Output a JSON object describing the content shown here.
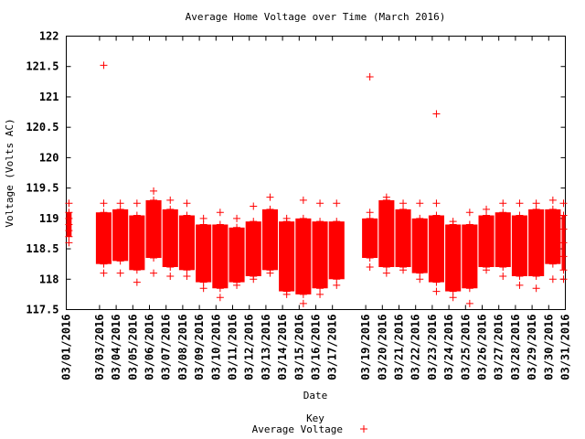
{
  "chart_data": {
    "type": "scatter",
    "title": "Average Home Voltage over Time (March 2016)",
    "xlabel": "Date",
    "ylabel": "Voltage (Volts AC)",
    "ylim": [
      117.5,
      122
    ],
    "yticks": [
      "117.5",
      "118",
      "118.5",
      "119",
      "119.5",
      "120",
      "120.5",
      "121",
      "121.5",
      "122"
    ],
    "xlim": [
      1,
      31
    ],
    "xticks": [
      {
        "day": 1,
        "label": "03/01/2016"
      },
      {
        "day": 3,
        "label": "03/03/2016"
      },
      {
        "day": 4,
        "label": "03/04/2016"
      },
      {
        "day": 5,
        "label": "03/05/2016"
      },
      {
        "day": 6,
        "label": "03/06/2016"
      },
      {
        "day": 7,
        "label": "03/07/2016"
      },
      {
        "day": 8,
        "label": "03/08/2016"
      },
      {
        "day": 9,
        "label": "03/09/2016"
      },
      {
        "day": 10,
        "label": "03/10/2016"
      },
      {
        "day": 11,
        "label": "03/11/2016"
      },
      {
        "day": 12,
        "label": "03/12/2016"
      },
      {
        "day": 13,
        "label": "03/13/2016"
      },
      {
        "day": 14,
        "label": "03/14/2016"
      },
      {
        "day": 15,
        "label": "03/15/2016"
      },
      {
        "day": 16,
        "label": "03/16/2016"
      },
      {
        "day": 17,
        "label": "03/17/2016"
      },
      {
        "day": 19,
        "label": "03/19/2016"
      },
      {
        "day": 20,
        "label": "03/20/2016"
      },
      {
        "day": 21,
        "label": "03/21/2016"
      },
      {
        "day": 22,
        "label": "03/22/2016"
      },
      {
        "day": 23,
        "label": "03/23/2016"
      },
      {
        "day": 24,
        "label": "03/24/2016"
      },
      {
        "day": 25,
        "label": "03/25/2016"
      },
      {
        "day": 26,
        "label": "03/26/2016"
      },
      {
        "day": 27,
        "label": "03/27/2016"
      },
      {
        "day": 28,
        "label": "03/28/2016"
      },
      {
        "day": 29,
        "label": "03/29/2016"
      },
      {
        "day": 30,
        "label": "03/30/2016"
      },
      {
        "day": 31,
        "label": "03/31/2016"
      }
    ],
    "legend": {
      "title": "Key",
      "placement": "bottom-center"
    },
    "color": "#ff0000",
    "series": [
      {
        "name": "Average Voltage",
        "marker": "plus",
        "days": [
          {
            "day": 1,
            "start": 0.0,
            "end": 0.1,
            "low": 118.7,
            "high": 119.1,
            "outliers": [
              118.6,
              119.25
            ]
          },
          {
            "day": 3,
            "start": 0.0,
            "end": 0.5,
            "low": 118.25,
            "high": 119.1,
            "outliers": [
              118.1,
              119.25,
              121.52
            ]
          },
          {
            "day": 4,
            "start": 0.0,
            "end": 0.5,
            "low": 118.3,
            "high": 119.15,
            "outliers": [
              118.1,
              119.25
            ]
          },
          {
            "day": 5,
            "start": 0.0,
            "end": 0.5,
            "low": 118.15,
            "high": 119.05,
            "outliers": [
              117.95,
              119.25
            ]
          },
          {
            "day": 6,
            "start": 0.0,
            "end": 0.5,
            "low": 118.35,
            "high": 119.3,
            "outliers": [
              118.1,
              119.45
            ]
          },
          {
            "day": 7,
            "start": 0.0,
            "end": 0.5,
            "low": 118.2,
            "high": 119.15,
            "outliers": [
              118.05,
              119.3
            ]
          },
          {
            "day": 8,
            "start": 0.0,
            "end": 0.5,
            "low": 118.15,
            "high": 119.05,
            "outliers": [
              118.05,
              119.25
            ]
          },
          {
            "day": 9,
            "start": 0.0,
            "end": 0.5,
            "low": 117.95,
            "high": 118.9,
            "outliers": [
              117.85,
              119.0
            ]
          },
          {
            "day": 10,
            "start": 0.0,
            "end": 0.5,
            "low": 117.85,
            "high": 118.9,
            "outliers": [
              117.7,
              119.1
            ]
          },
          {
            "day": 11,
            "start": 0.0,
            "end": 0.5,
            "low": 117.95,
            "high": 118.85,
            "outliers": [
              117.9,
              119.0
            ]
          },
          {
            "day": 12,
            "start": 0.0,
            "end": 0.5,
            "low": 118.05,
            "high": 118.95,
            "outliers": [
              118.0,
              119.2
            ]
          },
          {
            "day": 13,
            "start": 0.0,
            "end": 0.5,
            "low": 118.15,
            "high": 119.15,
            "outliers": [
              118.1,
              119.35
            ]
          },
          {
            "day": 14,
            "start": 0.0,
            "end": 0.5,
            "low": 117.8,
            "high": 118.95,
            "outliers": [
              117.75,
              119.0
            ]
          },
          {
            "day": 15,
            "start": 0.0,
            "end": 0.5,
            "low": 117.75,
            "high": 119.0,
            "outliers": [
              117.6,
              119.3
            ]
          },
          {
            "day": 16,
            "start": 0.0,
            "end": 0.5,
            "low": 117.85,
            "high": 118.95,
            "outliers": [
              117.75,
              119.25
            ]
          },
          {
            "day": 17,
            "start": 0.0,
            "end": 0.5,
            "low": 118.0,
            "high": 118.95,
            "outliers": [
              117.9,
              119.25
            ]
          },
          {
            "day": 19,
            "start": 0.0,
            "end": 0.5,
            "low": 118.35,
            "high": 119.0,
            "outliers": [
              118.2,
              119.1,
              121.33
            ]
          },
          {
            "day": 20,
            "start": 0.0,
            "end": 0.5,
            "low": 118.2,
            "high": 119.3,
            "outliers": [
              118.1,
              119.35
            ]
          },
          {
            "day": 21,
            "start": 0.0,
            "end": 0.5,
            "low": 118.2,
            "high": 119.15,
            "outliers": [
              118.15,
              119.25
            ]
          },
          {
            "day": 22,
            "start": 0.0,
            "end": 0.5,
            "low": 118.1,
            "high": 119.0,
            "outliers": [
              118.0,
              119.25
            ]
          },
          {
            "day": 23,
            "start": 0.0,
            "end": 0.5,
            "low": 117.95,
            "high": 119.05,
            "outliers": [
              117.8,
              119.25,
              120.72
            ]
          },
          {
            "day": 24,
            "start": 0.0,
            "end": 0.5,
            "low": 117.8,
            "high": 118.9,
            "outliers": [
              117.7,
              118.95
            ]
          },
          {
            "day": 25,
            "start": 0.0,
            "end": 0.5,
            "low": 117.85,
            "high": 118.9,
            "outliers": [
              117.6,
              119.1
            ]
          },
          {
            "day": 26,
            "start": 0.0,
            "end": 0.5,
            "low": 118.2,
            "high": 119.05,
            "outliers": [
              118.15,
              119.15
            ]
          },
          {
            "day": 27,
            "start": 0.0,
            "end": 0.5,
            "low": 118.2,
            "high": 119.1,
            "outliers": [
              118.05,
              119.25
            ]
          },
          {
            "day": 28,
            "start": 0.0,
            "end": 0.5,
            "low": 118.05,
            "high": 119.05,
            "outliers": [
              117.9,
              119.25
            ]
          },
          {
            "day": 29,
            "start": 0.0,
            "end": 0.5,
            "low": 118.05,
            "high": 119.15,
            "outliers": [
              117.85,
              119.25
            ]
          },
          {
            "day": 30,
            "start": 0.0,
            "end": 0.5,
            "low": 118.25,
            "high": 119.15,
            "outliers": [
              118.0,
              119.3
            ]
          },
          {
            "day": 31,
            "start": 0.0,
            "end": 0.1,
            "low": 118.15,
            "high": 119.05,
            "outliers": [
              118.0,
              119.25
            ]
          }
        ]
      }
    ]
  }
}
